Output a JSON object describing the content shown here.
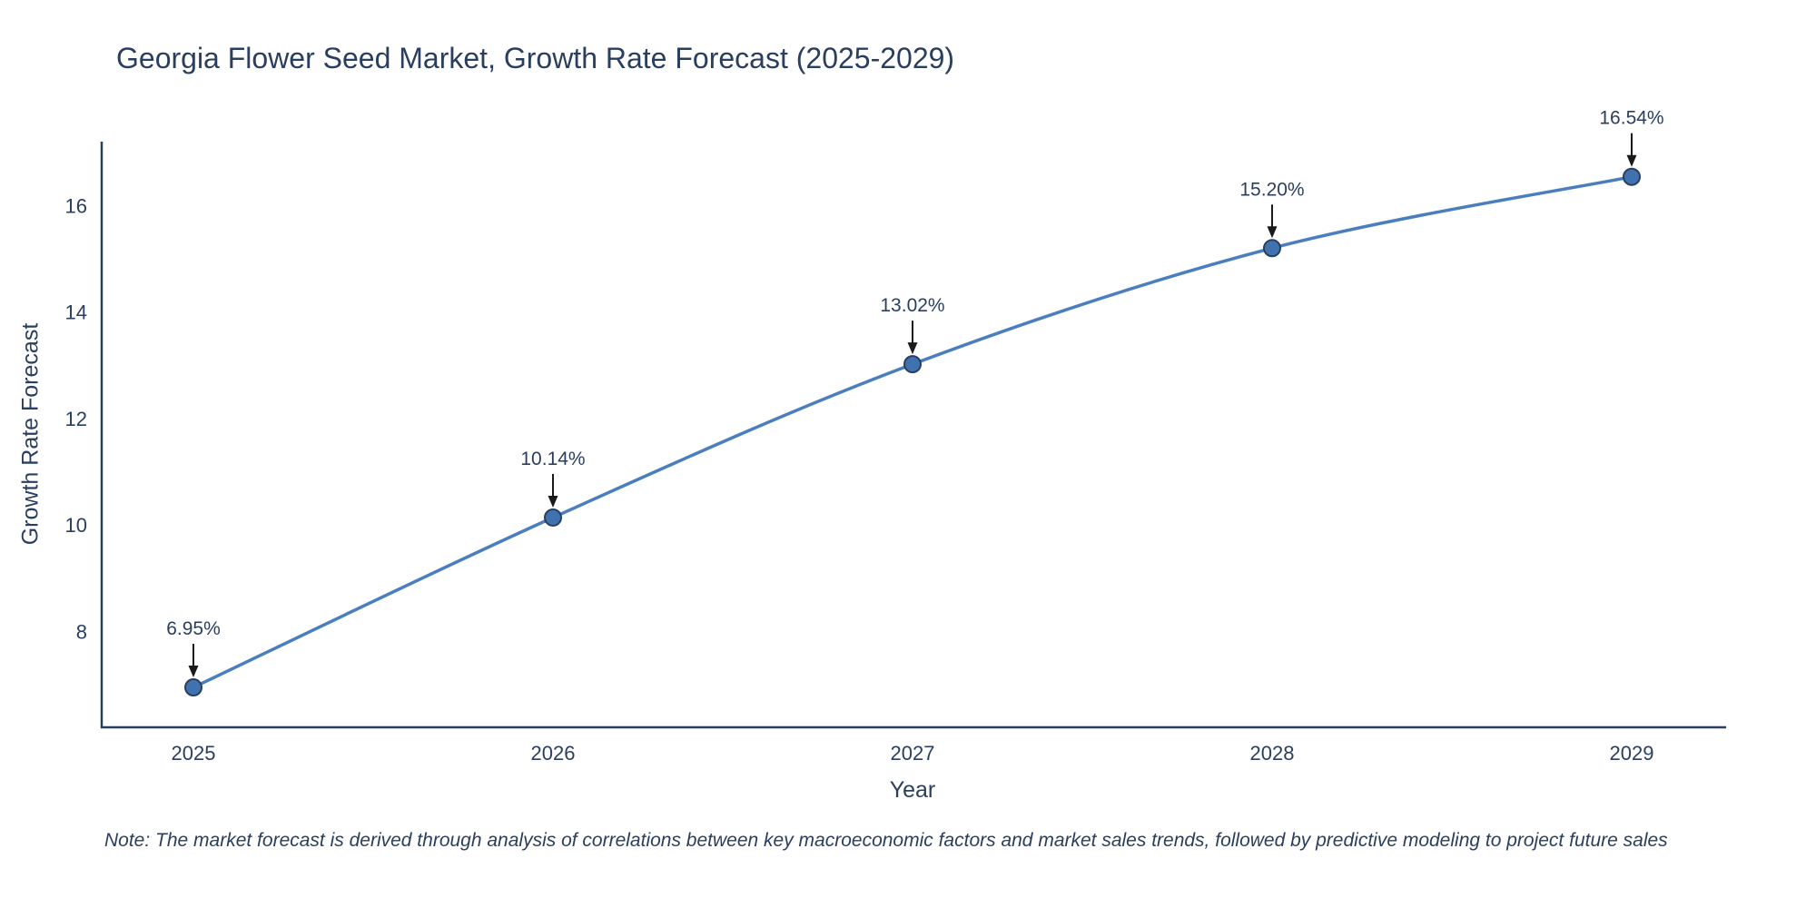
{
  "title": "Georgia Flower Seed Market, Growth Rate Forecast (2025-2029)",
  "note": "Note: The market forecast is derived through analysis of correlations between key macroeconomic factors and market sales trends, followed by predictive modeling to project future sales",
  "chart_data": {
    "type": "line",
    "title": "Georgia Flower Seed Market, Growth Rate Forecast (2025-2029)",
    "xlabel": "Year",
    "ylabel": "Growth Rate Forecast",
    "x": [
      "2025",
      "2026",
      "2027",
      "2028",
      "2029"
    ],
    "values": [
      6.95,
      10.14,
      13.02,
      15.2,
      16.54
    ],
    "point_labels": [
      "6.95%",
      "10.14%",
      "13.02%",
      "15.20%",
      "16.54%"
    ],
    "yticks": [
      8,
      10,
      12,
      14,
      16
    ],
    "ylim": [
      6.2,
      17.2
    ],
    "grid": false,
    "legend": "none",
    "line_color": "#4a7ebf",
    "marker_color": "#3f72af",
    "marker_edge_color": "#2a3f5f",
    "axis_color": "#2a3f5f",
    "text_color": "#2a3f5f",
    "annotation_arrow_color": "#1a1a1a"
  }
}
